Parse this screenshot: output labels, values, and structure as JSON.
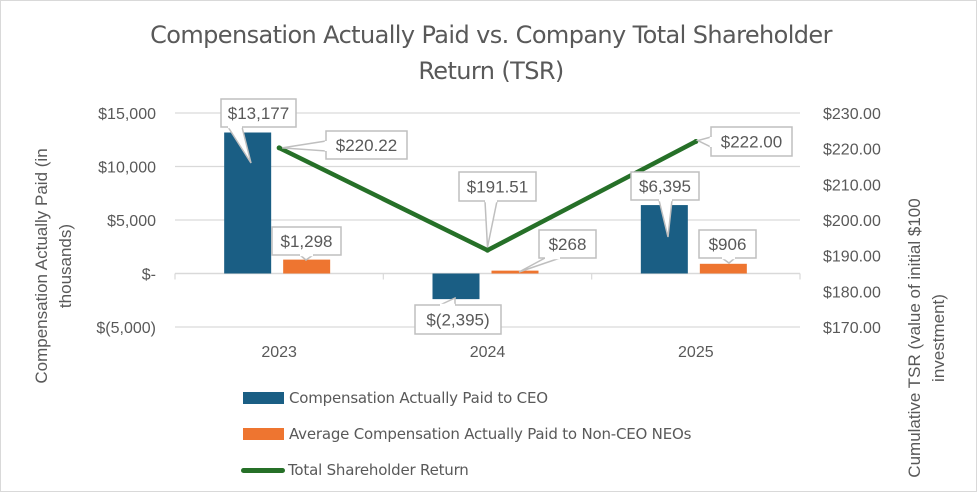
{
  "chart_data": {
    "type": "bar",
    "title": "Compensation Actually Paid vs. Company Total Shareholder Return (TSR)",
    "title_lines": [
      "Compensation Actually Paid vs. Company Total Shareholder",
      "Return (TSR)"
    ],
    "categories": [
      "2023",
      "2024",
      "2025"
    ],
    "series": [
      {
        "name": "Compensation Actually Paid to CEO",
        "type": "bar",
        "axis": "left",
        "color": "#1a5e84",
        "values": [
          13177,
          -2395,
          6395
        ],
        "labels": [
          "$13,177",
          "$(2,395)",
          "$6,395"
        ]
      },
      {
        "name": "Average Compensation Actually Paid to Non-CEO NEOs",
        "type": "bar",
        "axis": "left",
        "color": "#ee7530",
        "values": [
          1298,
          268,
          906
        ],
        "labels": [
          "$1,298",
          "$268",
          "$906"
        ]
      },
      {
        "name": "Total Shareholder Return",
        "type": "line",
        "axis": "right",
        "color": "#267028",
        "values": [
          220.22,
          191.51,
          222.0
        ],
        "labels": [
          "$220.22",
          "$191.51",
          "$222.00"
        ]
      }
    ],
    "y_left": {
      "label_lines": [
        "Compensation Actually Paid (in",
        "thousands)"
      ],
      "ylim": [
        -5000,
        15000
      ],
      "ticks": [
        15000,
        10000,
        5000,
        0,
        -5000
      ],
      "tick_labels": [
        "$15,000",
        "$10,000",
        "$5,000",
        "$-",
        "$(5,000)"
      ]
    },
    "y_right": {
      "label_lines": [
        "Cumulative TSR (value of initial $100",
        "investment)"
      ],
      "ylim": [
        170,
        230
      ],
      "ticks": [
        230,
        220,
        210,
        200,
        190,
        180,
        170
      ],
      "tick_labels": [
        "$230.00",
        "$220.00",
        "$210.00",
        "$200.00",
        "$190.00",
        "$180.00",
        "$170.00"
      ]
    },
    "xlabel": "",
    "grid": true,
    "legend": "bottom"
  }
}
